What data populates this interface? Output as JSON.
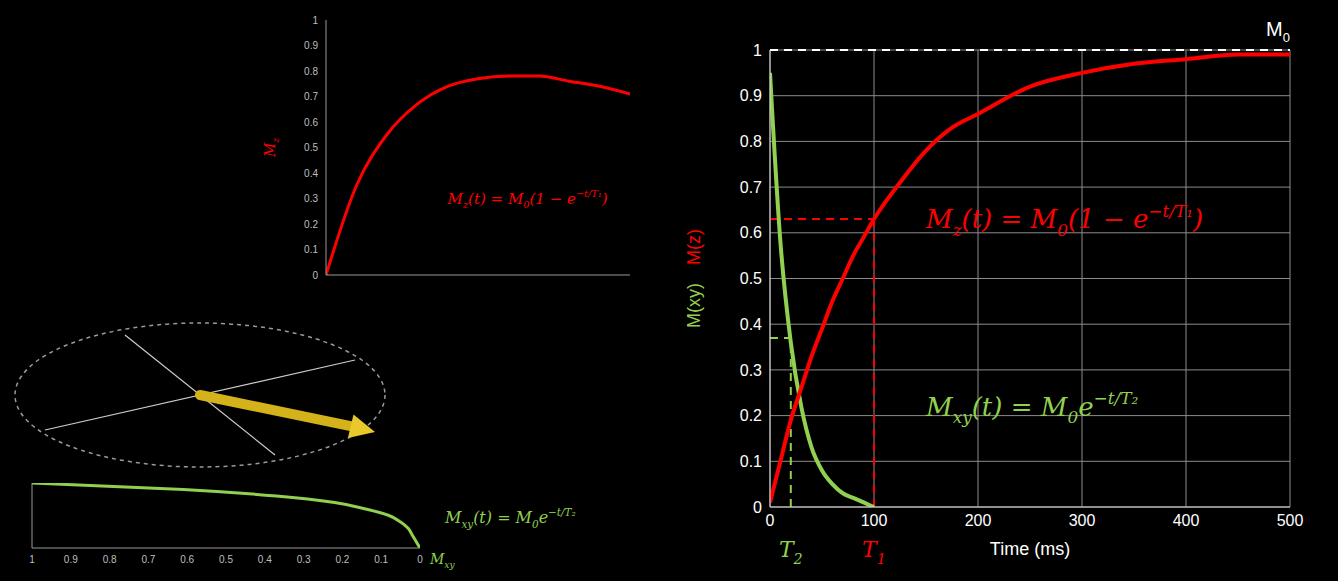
{
  "chart_data": [
    {
      "type": "line",
      "ylabel": [
        {
          "t": "M"
        },
        {
          "sub": "z"
        }
      ],
      "x": [
        0,
        1,
        2,
        3,
        4,
        5,
        6,
        7,
        8,
        9,
        10
      ],
      "values": [
        0,
        0.35,
        0.55,
        0.67,
        0.74,
        0.77,
        0.78,
        0.78,
        0.76,
        0.74,
        0.71
      ],
      "color": "#ff0000",
      "xlim": [
        0,
        10
      ],
      "ylim": [
        0,
        1
      ],
      "yticks": [
        0,
        0.1,
        0.2,
        0.3,
        0.4,
        0.5,
        0.6,
        0.7,
        0.8,
        0.9,
        1
      ],
      "tick_labels": "y",
      "annotations": [
        {
          "text": [
            {
              "t": "M"
            },
            {
              "sub": "z"
            },
            {
              "t": "(t) = M"
            },
            {
              "sub": "0"
            },
            {
              "t": "(1 − e"
            },
            {
              "sup": "−t/T₁"
            },
            {
              "t": ")"
            }
          ],
          "color": "#ff0000"
        }
      ]
    },
    {
      "type": "line",
      "xlabel": [
        {
          "t": "M"
        },
        {
          "sub": "xy"
        }
      ],
      "y": [
        0,
        10,
        20,
        30,
        40,
        50,
        60,
        70,
        80,
        90,
        100
      ],
      "values": [
        1,
        0.61,
        0.37,
        0.22,
        0.14,
        0.08,
        0.05,
        0.03,
        0.02,
        0.01,
        0
      ],
      "color": "#92d050",
      "xlim": [
        1,
        0
      ],
      "xticks": [
        1,
        0.9,
        0.8,
        0.7,
        0.6,
        0.5,
        0.4,
        0.3,
        0.2,
        0.1,
        0
      ],
      "ylim": [
        0,
        100
      ],
      "tick_labels": "x",
      "annotations": [
        {
          "text": [
            {
              "t": "M"
            },
            {
              "sub": "xy"
            },
            {
              "t": "(t) = M"
            },
            {
              "sub": "0"
            },
            {
              "t": "e"
            },
            {
              "sup": "−t/T₂"
            }
          ],
          "color": "#92d050"
        }
      ]
    },
    {
      "type": "line",
      "xlabel": "Time (ms)",
      "x": [
        0,
        10,
        20,
        30,
        40,
        50,
        60,
        70,
        80,
        90,
        100,
        125,
        150,
        175,
        200,
        250,
        300,
        350,
        400,
        450,
        500
      ],
      "series": [
        {
          "name": "M(xy)",
          "color": "#92d050",
          "values": [
            0.95,
            0.58,
            0.36,
            0.22,
            0.13,
            0.08,
            0.05,
            0.03,
            0.02,
            0.01,
            0,
            null,
            null,
            null,
            null,
            null,
            null,
            null,
            null,
            null,
            null
          ]
        },
        {
          "name": "M(z)",
          "color": "#ff0000",
          "values": [
            0.01,
            0.1,
            0.19,
            0.26,
            0.33,
            0.39,
            0.45,
            0.5,
            0.55,
            0.59,
            0.63,
            0.71,
            0.78,
            0.83,
            0.86,
            0.92,
            0.95,
            0.97,
            0.98,
            0.99,
            0.99
          ]
        }
      ],
      "xlim": [
        0,
        500
      ],
      "xticks": [
        0,
        100,
        200,
        300,
        400,
        500
      ],
      "ylim": [
        0,
        1
      ],
      "yticks": [
        0,
        0.1,
        0.2,
        0.3,
        0.4,
        0.5,
        0.6,
        0.7,
        0.8,
        0.9,
        1
      ],
      "grid": true,
      "reference": {
        "y": 1,
        "label": [
          {
            "t": "M"
          },
          {
            "sub": "0"
          }
        ],
        "color": "#ffffff",
        "line_style": "dashed"
      },
      "guides": [
        {
          "x": 100,
          "y": 0.63,
          "color": "#ff0000",
          "line_style": "dashed",
          "label": [
            {
              "t": "T"
            },
            {
              "sub": "1"
            }
          ]
        },
        {
          "x": 20,
          "y": 0.37,
          "color": "#92d050",
          "line_style": "dashed",
          "label": [
            {
              "t": "T"
            },
            {
              "sub": "2"
            }
          ]
        }
      ],
      "annotations": [
        {
          "text": [
            {
              "t": "M"
            },
            {
              "sub": "z"
            },
            {
              "t": "(t) = M"
            },
            {
              "sub": "0"
            },
            {
              "t": "(1 − e"
            },
            {
              "sup": "−t/T₁"
            },
            {
              "t": ")"
            }
          ],
          "color": "#ff0000"
        },
        {
          "text": [
            {
              "t": "M"
            },
            {
              "sub": "xy"
            },
            {
              "t": "(t) = M"
            },
            {
              "sub": "0"
            },
            {
              "t": "e"
            },
            {
              "sup": "−t/T₂"
            }
          ],
          "color": "#92d050"
        }
      ]
    }
  ]
}
